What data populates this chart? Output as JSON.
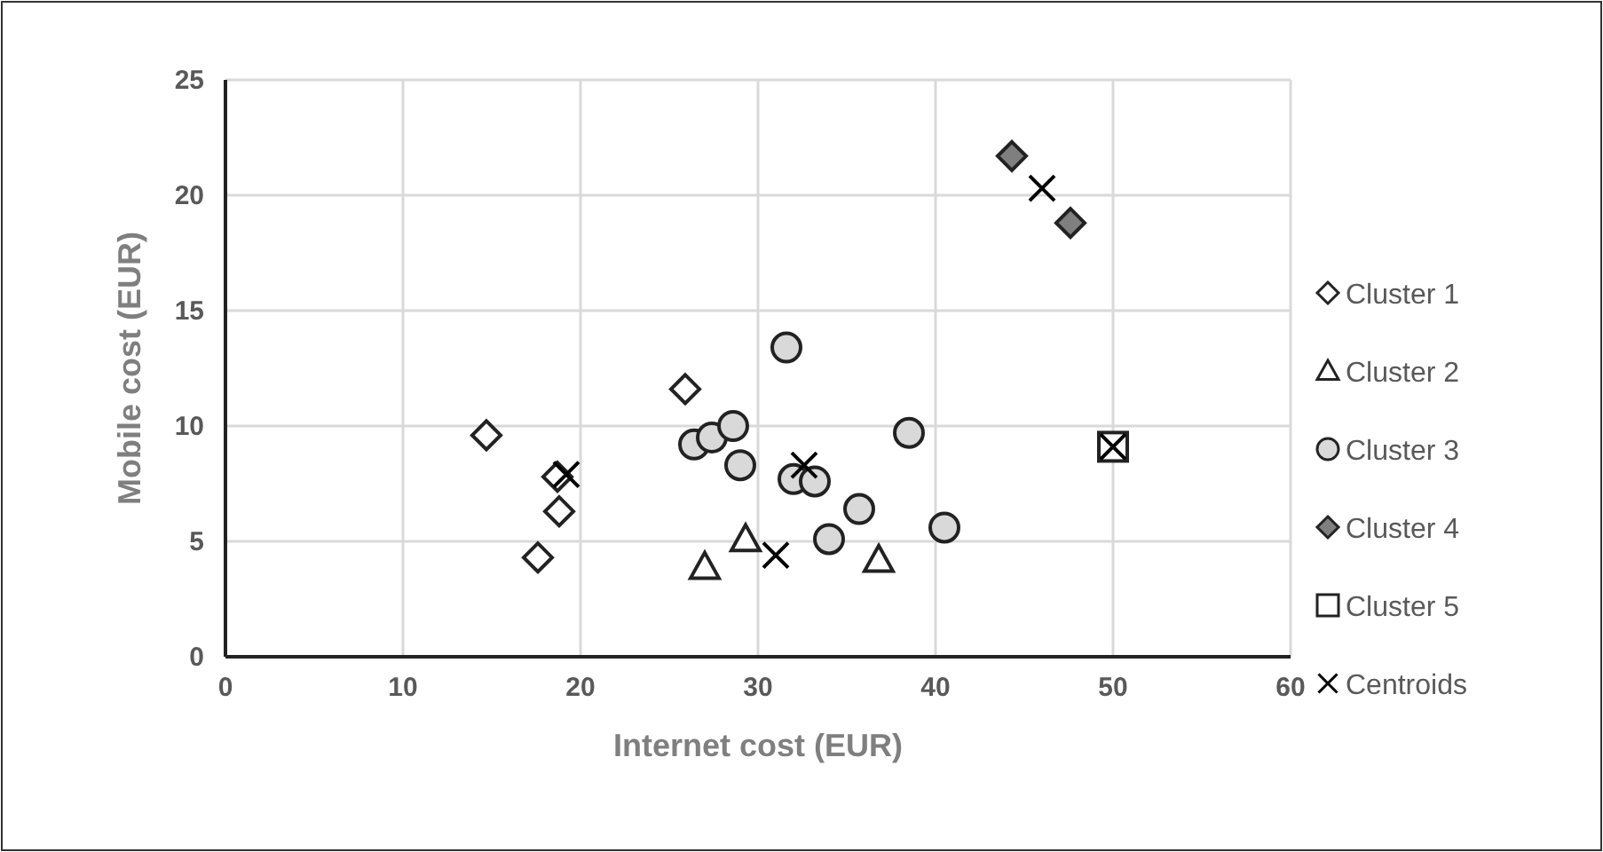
{
  "chart_data": {
    "type": "scatter",
    "xlabel": "Internet cost (EUR)",
    "ylabel": "Mobile cost (EUR)",
    "xlim": [
      0,
      60
    ],
    "ylim": [
      0,
      25
    ],
    "xticks": [
      0,
      10,
      20,
      30,
      40,
      50,
      60
    ],
    "yticks": [
      0,
      5,
      10,
      15,
      20,
      25
    ],
    "grid": true,
    "legend": "right",
    "series": [
      {
        "name": "Cluster 1",
        "color": "#ffffff",
        "marker": "diamond",
        "x": [
          14.7,
          18.7,
          18.8,
          17.6,
          25.9
        ],
        "values": [
          9.6,
          7.8,
          6.3,
          4.3,
          11.6
        ]
      },
      {
        "name": "Cluster 2",
        "color": "#ffffff",
        "marker": "triangle",
        "x": [
          27,
          29.3,
          36.8
        ],
        "values": [
          3.9,
          5.1,
          4.2
        ]
      },
      {
        "name": "Cluster 3",
        "color": "#d9d9d9",
        "marker": "circle",
        "x": [
          31.6,
          26.4,
          27.4,
          28.6,
          29.0,
          32.0,
          33.2,
          34.0,
          35.7,
          38.5,
          40.5
        ],
        "values": [
          13.4,
          9.2,
          9.5,
          10.0,
          8.3,
          7.7,
          7.6,
          5.1,
          6.4,
          9.7,
          5.6
        ]
      },
      {
        "name": "Cluster 4",
        "color": "#7f7f7f",
        "marker": "diamond",
        "x": [
          44.3,
          47.6
        ],
        "values": [
          21.7,
          18.8
        ]
      },
      {
        "name": "Cluster 5",
        "color": "#ffffff",
        "marker": "square",
        "x": [
          50
        ],
        "values": [
          9.1
        ]
      },
      {
        "name": "Centroids",
        "color": "#000000",
        "marker": "cross",
        "x": [
          19.2,
          31,
          32.6,
          46,
          50
        ],
        "values": [
          7.9,
          4.4,
          8.3,
          20.3,
          9.1
        ]
      }
    ]
  }
}
